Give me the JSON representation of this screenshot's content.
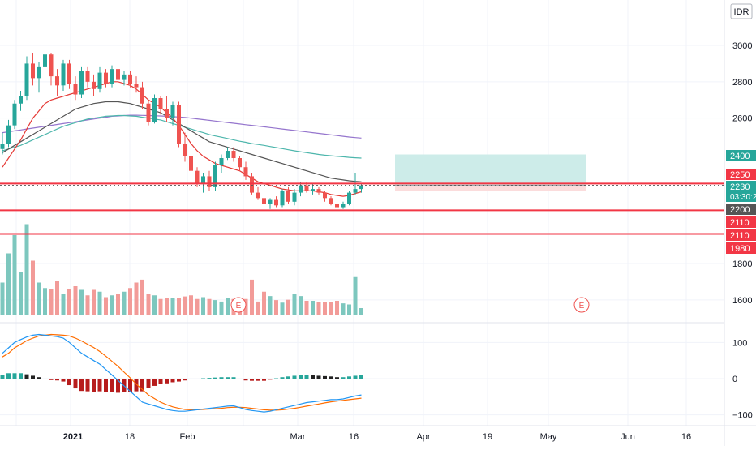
{
  "currency": "IDR",
  "colors": {
    "up": "#26a69a",
    "down": "#ef5350",
    "vol_up": "#7dc7be",
    "vol_down": "#f29b98",
    "ma_fast": "#e53935",
    "ma_mid": "#555555",
    "ma_slow": "#4db6ac",
    "ma_long": "#9575cd",
    "level": "#f23645",
    "macd": "#2196f3",
    "signal": "#ff6d00",
    "hist_up": "#26a69a",
    "hist_dark": "#222222",
    "hist_down": "#b71c1c",
    "profit_zone": "#cdece9",
    "loss_zone": "#fbdcdc"
  },
  "price_axis": {
    "ticks": [
      "3000",
      "2800",
      "2600",
      "1800",
      "1600"
    ],
    "tick_values": [
      3000,
      2800,
      2600,
      1800,
      1600
    ]
  },
  "price_tags": [
    {
      "label": "2400",
      "value": 2400,
      "color": "#26a69a"
    },
    {
      "label": "2250",
      "value": 2250,
      "color": "#f23645"
    },
    {
      "label": "2230",
      "value": 2230,
      "color": "#26a69a",
      "sublabel": "03:30:2"
    },
    {
      "label": "2200",
      "value": 2200,
      "color": "#555555"
    },
    {
      "label": "2110",
      "value": 2110,
      "color": "#f23645"
    },
    {
      "label": "2110",
      "value": 2110,
      "color": "#f23645"
    },
    {
      "label": "1980",
      "value": 1980,
      "color": "#f23645"
    }
  ],
  "levels": [
    2240,
    2093,
    1963
  ],
  "macd_axis": {
    "ticks": [
      "100",
      "0",
      "−100"
    ],
    "tick_values": [
      100,
      0,
      -100
    ]
  },
  "time_axis": {
    "labels": [
      "2021",
      "18",
      "Feb",
      "Mar",
      "16",
      "Apr",
      "19",
      "May",
      "Jun",
      "16"
    ]
  },
  "earnings_marker": "E",
  "chart_data": {
    "type": "candlestick",
    "instrument_currency": "IDR",
    "ohlc": [
      [
        2430,
        2520,
        2400,
        2460
      ],
      [
        2460,
        2590,
        2440,
        2560
      ],
      [
        2560,
        2700,
        2540,
        2680
      ],
      [
        2680,
        2750,
        2640,
        2720
      ],
      [
        2720,
        2940,
        2700,
        2900
      ],
      [
        2900,
        2960,
        2780,
        2820
      ],
      [
        2820,
        2910,
        2740,
        2880
      ],
      [
        2880,
        2990,
        2840,
        2950
      ],
      [
        2950,
        2960,
        2780,
        2830
      ],
      [
        2830,
        2870,
        2720,
        2780
      ],
      [
        2780,
        2920,
        2750,
        2900
      ],
      [
        2900,
        2920,
        2760,
        2790
      ],
      [
        2790,
        2830,
        2700,
        2730
      ],
      [
        2730,
        2880,
        2710,
        2860
      ],
      [
        2860,
        2880,
        2770,
        2800
      ],
      [
        2800,
        2840,
        2720,
        2760
      ],
      [
        2760,
        2880,
        2740,
        2850
      ],
      [
        2850,
        2870,
        2770,
        2790
      ],
      [
        2790,
        2890,
        2770,
        2870
      ],
      [
        2870,
        2880,
        2790,
        2810
      ],
      [
        2810,
        2860,
        2780,
        2840
      ],
      [
        2840,
        2860,
        2770,
        2790
      ],
      [
        2790,
        2830,
        2740,
        2770
      ],
      [
        2770,
        2800,
        2650,
        2680
      ],
      [
        2680,
        2700,
        2560,
        2580
      ],
      [
        2580,
        2730,
        2570,
        2710
      ],
      [
        2710,
        2720,
        2620,
        2650
      ],
      [
        2650,
        2720,
        2580,
        2600
      ],
      [
        2600,
        2690,
        2560,
        2670
      ],
      [
        2670,
        2690,
        2440,
        2460
      ],
      [
        2460,
        2520,
        2360,
        2390
      ],
      [
        2390,
        2460,
        2300,
        2310
      ],
      [
        2310,
        2330,
        2220,
        2240
      ],
      [
        2240,
        2300,
        2190,
        2280
      ],
      [
        2280,
        2310,
        2200,
        2220
      ],
      [
        2220,
        2360,
        2200,
        2340
      ],
      [
        2340,
        2400,
        2300,
        2380
      ],
      [
        2380,
        2440,
        2370,
        2420
      ],
      [
        2420,
        2440,
        2360,
        2380
      ],
      [
        2380,
        2390,
        2310,
        2330
      ],
      [
        2330,
        2360,
        2260,
        2280
      ],
      [
        2280,
        2300,
        2180,
        2190
      ],
      [
        2190,
        2220,
        2150,
        2160
      ],
      [
        2160,
        2180,
        2110,
        2130
      ],
      [
        2130,
        2160,
        2100,
        2150
      ],
      [
        2150,
        2170,
        2110,
        2120
      ],
      [
        2120,
        2210,
        2110,
        2200
      ],
      [
        2200,
        2220,
        2130,
        2140
      ],
      [
        2140,
        2210,
        2120,
        2190
      ],
      [
        2190,
        2250,
        2170,
        2230
      ],
      [
        2230,
        2250,
        2190,
        2200
      ],
      [
        2200,
        2240,
        2180,
        2210
      ],
      [
        2210,
        2220,
        2180,
        2190
      ],
      [
        2190,
        2200,
        2140,
        2160
      ],
      [
        2160,
        2170,
        2120,
        2130
      ],
      [
        2130,
        2150,
        2100,
        2110
      ],
      [
        2110,
        2140,
        2100,
        2130
      ],
      [
        2130,
        2200,
        2120,
        2190
      ],
      [
        2190,
        2300,
        2180,
        2210
      ],
      [
        2210,
        2240,
        2190,
        2230
      ]
    ],
    "volume": [
      90,
      170,
      220,
      120,
      250,
      150,
      90,
      75,
      72,
      95,
      60,
      73,
      80,
      70,
      55,
      70,
      65,
      50,
      55,
      58,
      65,
      75,
      90,
      98,
      60,
      55,
      45,
      48,
      48,
      48,
      52,
      55,
      45,
      50,
      45,
      42,
      38,
      47,
      45,
      40,
      45,
      98,
      38,
      65,
      53,
      42,
      35,
      43,
      60,
      53,
      40,
      40,
      36,
      37,
      36,
      40,
      33,
      30,
      105,
      20
    ],
    "ma_fast": [
      2330,
      2380,
      2430,
      2480,
      2540,
      2600,
      2640,
      2680,
      2700,
      2710,
      2720,
      2730,
      2740,
      2750,
      2760,
      2770,
      2780,
      2790,
      2800,
      2800,
      2790,
      2780,
      2760,
      2730,
      2700,
      2680,
      2660,
      2630,
      2600,
      2560,
      2510,
      2460,
      2420,
      2390,
      2370,
      2350,
      2340,
      2330,
      2320,
      2310,
      2290,
      2270,
      2250,
      2240,
      2230,
      2220,
      2210,
      2205,
      2200,
      2200,
      2200,
      2200,
      2195,
      2190,
      2180,
      2175,
      2170,
      2175,
      2185,
      2195
    ],
    "ma_mid": [
      2410,
      2430,
      2450,
      2470,
      2490,
      2510,
      2530,
      2550,
      2570,
      2590,
      2610,
      2630,
      2650,
      2660,
      2670,
      2680,
      2685,
      2690,
      2690,
      2690,
      2685,
      2680,
      2670,
      2660,
      2650,
      2640,
      2630,
      2610,
      2590,
      2570,
      2550,
      2530,
      2510,
      2490,
      2470,
      2460,
      2450,
      2440,
      2430,
      2420,
      2410,
      2400,
      2390,
      2380,
      2370,
      2360,
      2350,
      2340,
      2330,
      2320,
      2310,
      2300,
      2290,
      2280,
      2270,
      2265,
      2260,
      2255,
      2252,
      2250
    ],
    "ma_slow": [
      2420,
      2430,
      2440,
      2450,
      2465,
      2480,
      2495,
      2510,
      2525,
      2540,
      2555,
      2565,
      2575,
      2585,
      2595,
      2600,
      2605,
      2610,
      2612,
      2614,
      2614,
      2612,
      2610,
      2605,
      2600,
      2595,
      2590,
      2580,
      2570,
      2560,
      2550,
      2540,
      2530,
      2520,
      2510,
      2502,
      2495,
      2488,
      2480,
      2473,
      2467,
      2460,
      2455,
      2450,
      2444,
      2438,
      2432,
      2426,
      2420,
      2415,
      2410,
      2405,
      2400,
      2396,
      2393,
      2390,
      2387,
      2384,
      2382,
      2380
    ],
    "ma_long": [
      2520,
      2525,
      2530,
      2535,
      2540,
      2545,
      2550,
      2555,
      2560,
      2565,
      2570,
      2575,
      2580,
      2585,
      2590,
      2595,
      2600,
      2605,
      2610,
      2612,
      2614,
      2616,
      2616,
      2615,
      2614,
      2613,
      2612,
      2610,
      2608,
      2606,
      2604,
      2600,
      2596,
      2592,
      2588,
      2584,
      2580,
      2576,
      2572,
      2568,
      2564,
      2560,
      2556,
      2552,
      2548,
      2544,
      2540,
      2536,
      2532,
      2528,
      2524,
      2520,
      2516,
      2512,
      2508,
      2504,
      2500,
      2496,
      2493,
      2490
    ],
    "macd": [
      70,
      85,
      100,
      108,
      115,
      120,
      122,
      120,
      118,
      116,
      112,
      100,
      85,
      70,
      60,
      50,
      40,
      25,
      10,
      -5,
      -20,
      -35,
      -50,
      -65,
      -70,
      -75,
      -80,
      -85,
      -88,
      -90,
      -90,
      -88,
      -86,
      -84,
      -82,
      -80,
      -78,
      -76,
      -75,
      -80,
      -85,
      -88,
      -90,
      -92,
      -90,
      -86,
      -82,
      -78,
      -74,
      -70,
      -66,
      -64,
      -62,
      -60,
      -58,
      -58,
      -56,
      -52,
      -48,
      -45
    ],
    "signal": [
      60,
      70,
      85,
      95,
      105,
      112,
      118,
      120,
      122,
      121,
      120,
      118,
      112,
      104,
      95,
      86,
      75,
      62,
      48,
      34,
      18,
      2,
      -15,
      -30,
      -45,
      -55,
      -65,
      -72,
      -78,
      -82,
      -85,
      -86,
      -86,
      -85,
      -84,
      -83,
      -82,
      -80,
      -79,
      -79,
      -80,
      -82,
      -84,
      -86,
      -87,
      -87,
      -86,
      -84,
      -82,
      -79,
      -76,
      -73,
      -70,
      -67,
      -64,
      -62,
      -60,
      -58,
      -56,
      -54
    ],
    "hist": [
      10,
      15,
      15,
      15,
      12,
      8,
      4,
      0,
      -4,
      -5,
      -8,
      -18,
      -27,
      -34,
      -35,
      -36,
      -35,
      -37,
      -38,
      -39,
      -38,
      -37,
      -35,
      -35,
      -25,
      -20,
      -15,
      -13,
      -10,
      -8,
      -5,
      -2,
      0,
      1,
      2,
      3,
      4,
      4,
      4,
      -1,
      -5,
      -6,
      -6,
      -6,
      -3,
      1,
      4,
      6,
      8,
      9,
      10,
      9,
      8,
      7,
      6,
      4,
      4,
      6,
      8,
      9
    ],
    "xlabel": "",
    "ylabel": "",
    "price_range": [
      1525,
      3070
    ],
    "macd_range": [
      -115,
      155
    ],
    "trade_setup": {
      "target": 2400,
      "entry": 2230,
      "stop": 2200
    },
    "horizontal_levels": [
      2240,
      2093,
      1963
    ],
    "grid": true
  }
}
